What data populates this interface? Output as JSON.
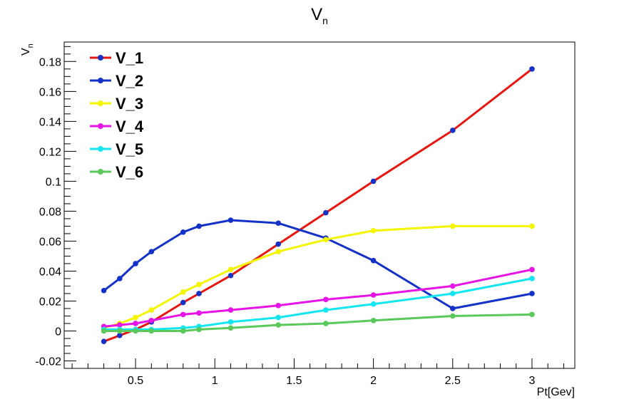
{
  "chart_data": {
    "type": "line",
    "title": "V",
    "title_subscript": "n",
    "xlabel": "Pt[Gev]",
    "ylabel": "V",
    "ylabel_subscript": "n",
    "xlim": [
      0.05,
      3.27
    ],
    "ylim": [
      -0.025,
      0.193
    ],
    "xticks": [
      0.5,
      1,
      1.5,
      2,
      2.5,
      3
    ],
    "xtick_labels": [
      "0.5",
      "1",
      "1.5",
      "2",
      "2.5",
      "3"
    ],
    "yticks": [
      -0.02,
      0,
      0.02,
      0.04,
      0.06,
      0.08,
      0.1,
      0.12,
      0.14,
      0.16,
      0.18
    ],
    "ytick_labels": [
      "-0.02",
      "0",
      "0.02",
      "0.04",
      "0.06",
      "0.08",
      "0.1",
      "0.12",
      "0.14",
      "0.16",
      "0.18"
    ],
    "grid": false,
    "legend_position": "top-left",
    "series": [
      {
        "name": "V_1",
        "line_color": "#e8160e",
        "marker_color": "#1432c8",
        "x": [
          0.3,
          0.4,
          0.5,
          0.6,
          0.8,
          0.9,
          1.1,
          1.4,
          1.7,
          2.0,
          2.5,
          3.0
        ],
        "y": [
          -0.007,
          -0.003,
          0.001,
          0.006,
          0.019,
          0.025,
          0.037,
          0.058,
          0.079,
          0.1,
          0.134,
          0.175
        ]
      },
      {
        "name": "V_2",
        "line_color": "#1432c8",
        "marker_color": "#1432c8",
        "x": [
          0.3,
          0.4,
          0.5,
          0.6,
          0.8,
          0.9,
          1.1,
          1.4,
          1.7,
          2.0,
          2.5,
          3.0
        ],
        "y": [
          0.027,
          0.035,
          0.045,
          0.053,
          0.066,
          0.07,
          0.074,
          0.072,
          0.062,
          0.047,
          0.015,
          0.025
        ]
      },
      {
        "name": "V_3",
        "line_color": "#f5f500",
        "marker_color": "#f5f500",
        "x": [
          0.3,
          0.4,
          0.5,
          0.6,
          0.8,
          0.9,
          1.1,
          1.4,
          1.7,
          2.0,
          2.5,
          3.0
        ],
        "y": [
          0.002,
          0.005,
          0.009,
          0.014,
          0.026,
          0.031,
          0.041,
          0.053,
          0.061,
          0.067,
          0.07,
          0.07
        ]
      },
      {
        "name": "V_4",
        "line_color": "#e614e6",
        "marker_color": "#e614e6",
        "x": [
          0.3,
          0.4,
          0.5,
          0.6,
          0.8,
          0.9,
          1.1,
          1.4,
          1.7,
          2.0,
          2.5,
          3.0
        ],
        "y": [
          0.003,
          0.004,
          0.005,
          0.007,
          0.011,
          0.012,
          0.014,
          0.017,
          0.021,
          0.024,
          0.03,
          0.041
        ]
      },
      {
        "name": "V_5",
        "line_color": "#14e6f0",
        "marker_color": "#14e6f0",
        "x": [
          0.3,
          0.4,
          0.5,
          0.6,
          0.8,
          0.9,
          1.1,
          1.4,
          1.7,
          2.0,
          2.5,
          3.0
        ],
        "y": [
          0.001,
          0.001,
          0.001,
          0.001,
          0.002,
          0.003,
          0.006,
          0.009,
          0.014,
          0.018,
          0.025,
          0.035
        ]
      },
      {
        "name": "V_6",
        "line_color": "#5ac85a",
        "marker_color": "#5ac85a",
        "x": [
          0.3,
          0.4,
          0.5,
          0.6,
          0.8,
          0.9,
          1.1,
          1.4,
          1.7,
          2.0,
          2.5,
          3.0
        ],
        "y": [
          0.0,
          0.0,
          0.0,
          0.0,
          0.0,
          0.001,
          0.002,
          0.004,
          0.005,
          0.007,
          0.01,
          0.011
        ]
      }
    ]
  }
}
